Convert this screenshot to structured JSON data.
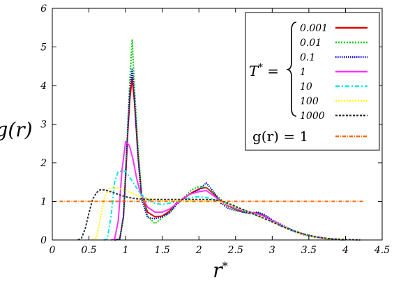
{
  "chart_data": {
    "type": "line",
    "xlabel": "r*",
    "ylabel": "g(r)",
    "xlim": [
      0,
      4.5
    ],
    "ylim": [
      0,
      6
    ],
    "xticks": [
      0,
      0.5,
      1,
      1.5,
      2,
      2.5,
      3,
      3.5,
      4,
      4.5
    ],
    "yticks": [
      0,
      1,
      2,
      3,
      4,
      5,
      6
    ],
    "grid": false,
    "legend_position": "top-right",
    "legend_group_label": "T* =",
    "series": [
      {
        "name": "0.001",
        "color": "#e00000",
        "dash": "solid",
        "points": [
          [
            0.85,
            0
          ],
          [
            0.92,
            0.02
          ],
          [
            0.97,
            0.6
          ],
          [
            1.0,
            1.6
          ],
          [
            1.03,
            2.8
          ],
          [
            1.06,
            3.7
          ],
          [
            1.09,
            4.2
          ],
          [
            1.12,
            3.6
          ],
          [
            1.17,
            2.2
          ],
          [
            1.22,
            1.15
          ],
          [
            1.3,
            0.72
          ],
          [
            1.4,
            0.6
          ],
          [
            1.5,
            0.62
          ],
          [
            1.6,
            0.75
          ],
          [
            1.7,
            0.97
          ],
          [
            1.8,
            1.08
          ],
          [
            1.9,
            1.22
          ],
          [
            2.0,
            1.32
          ],
          [
            2.1,
            1.36
          ],
          [
            2.2,
            1.2
          ],
          [
            2.3,
            1.0
          ],
          [
            2.4,
            0.88
          ],
          [
            2.5,
            0.8
          ],
          [
            2.6,
            0.74
          ],
          [
            2.7,
            0.7
          ],
          [
            2.8,
            0.7
          ],
          [
            2.9,
            0.62
          ],
          [
            3.0,
            0.5
          ],
          [
            3.1,
            0.4
          ],
          [
            3.2,
            0.3
          ],
          [
            3.3,
            0.22
          ],
          [
            3.4,
            0.15
          ],
          [
            3.5,
            0.1
          ],
          [
            3.6,
            0.07
          ],
          [
            3.7,
            0.04
          ],
          [
            3.8,
            0.02
          ],
          [
            3.9,
            0.01
          ],
          [
            4.0,
            0.0
          ]
        ]
      },
      {
        "name": "0.01",
        "color": "#00cc00",
        "dash": "2,2",
        "points": [
          [
            0.85,
            0
          ],
          [
            0.92,
            0.02
          ],
          [
            0.97,
            0.6
          ],
          [
            1.0,
            1.8
          ],
          [
            1.03,
            3.0
          ],
          [
            1.06,
            4.2
          ],
          [
            1.09,
            5.2
          ],
          [
            1.12,
            4.0
          ],
          [
            1.17,
            2.4
          ],
          [
            1.22,
            1.15
          ],
          [
            1.3,
            0.62
          ],
          [
            1.4,
            0.42
          ],
          [
            1.5,
            0.58
          ],
          [
            1.6,
            0.7
          ],
          [
            1.7,
            0.95
          ],
          [
            1.8,
            1.1
          ],
          [
            1.9,
            1.3
          ],
          [
            2.0,
            1.38
          ],
          [
            2.1,
            1.36
          ],
          [
            2.2,
            1.22
          ],
          [
            2.3,
            1.05
          ],
          [
            2.4,
            0.88
          ],
          [
            2.5,
            0.78
          ],
          [
            2.6,
            0.72
          ],
          [
            2.7,
            0.7
          ],
          [
            2.8,
            0.72
          ],
          [
            2.9,
            0.62
          ],
          [
            3.0,
            0.5
          ],
          [
            3.1,
            0.4
          ],
          [
            3.2,
            0.3
          ],
          [
            3.3,
            0.22
          ],
          [
            3.4,
            0.15
          ],
          [
            3.5,
            0.1
          ],
          [
            3.6,
            0.07
          ],
          [
            3.7,
            0.04
          ],
          [
            3.8,
            0.02
          ],
          [
            3.9,
            0.01
          ],
          [
            4.0,
            0.0
          ]
        ]
      },
      {
        "name": "0.1",
        "color": "#0000cc",
        "dash": "1.5,1.5",
        "points": [
          [
            0.85,
            0
          ],
          [
            0.92,
            0.02
          ],
          [
            0.97,
            0.6
          ],
          [
            1.0,
            1.7
          ],
          [
            1.03,
            2.9
          ],
          [
            1.06,
            3.9
          ],
          [
            1.09,
            4.45
          ],
          [
            1.12,
            3.7
          ],
          [
            1.17,
            2.1
          ],
          [
            1.22,
            1.05
          ],
          [
            1.3,
            0.58
          ],
          [
            1.4,
            0.55
          ],
          [
            1.5,
            0.6
          ],
          [
            1.6,
            0.7
          ],
          [
            1.7,
            0.92
          ],
          [
            1.8,
            1.1
          ],
          [
            1.9,
            1.2
          ],
          [
            2.0,
            1.3
          ],
          [
            2.1,
            1.48
          ],
          [
            2.2,
            1.25
          ],
          [
            2.3,
            0.95
          ],
          [
            2.4,
            0.82
          ],
          [
            2.5,
            0.76
          ],
          [
            2.6,
            0.72
          ],
          [
            2.7,
            0.68
          ],
          [
            2.8,
            0.72
          ],
          [
            2.9,
            0.65
          ],
          [
            3.0,
            0.52
          ],
          [
            3.1,
            0.42
          ],
          [
            3.2,
            0.32
          ],
          [
            3.3,
            0.24
          ],
          [
            3.4,
            0.17
          ],
          [
            3.5,
            0.12
          ],
          [
            3.6,
            0.08
          ],
          [
            3.7,
            0.05
          ],
          [
            3.8,
            0.03
          ],
          [
            3.9,
            0.01
          ],
          [
            4.0,
            0.0
          ]
        ]
      },
      {
        "name": "1",
        "color": "#ff33ff",
        "dash": "solid",
        "points": [
          [
            0.8,
            0
          ],
          [
            0.85,
            0.02
          ],
          [
            0.9,
            0.5
          ],
          [
            0.95,
            1.8
          ],
          [
            1.0,
            2.55
          ],
          [
            1.05,
            2.45
          ],
          [
            1.1,
            2.1
          ],
          [
            1.15,
            1.6
          ],
          [
            1.2,
            1.22
          ],
          [
            1.3,
            0.85
          ],
          [
            1.4,
            0.72
          ],
          [
            1.5,
            0.72
          ],
          [
            1.6,
            0.8
          ],
          [
            1.7,
            0.95
          ],
          [
            1.8,
            1.1
          ],
          [
            1.9,
            1.2
          ],
          [
            2.0,
            1.25
          ],
          [
            2.1,
            1.28
          ],
          [
            2.2,
            1.15
          ],
          [
            2.3,
            1.0
          ],
          [
            2.4,
            0.9
          ],
          [
            2.5,
            0.82
          ],
          [
            2.6,
            0.76
          ],
          [
            2.7,
            0.72
          ],
          [
            2.8,
            0.68
          ],
          [
            2.9,
            0.6
          ],
          [
            3.0,
            0.5
          ],
          [
            3.1,
            0.4
          ],
          [
            3.2,
            0.3
          ],
          [
            3.3,
            0.22
          ],
          [
            3.4,
            0.15
          ],
          [
            3.5,
            0.1
          ],
          [
            3.6,
            0.07
          ],
          [
            3.7,
            0.04
          ],
          [
            3.8,
            0.02
          ],
          [
            3.9,
            0.01
          ],
          [
            4.0,
            0.0
          ]
        ]
      },
      {
        "name": "10",
        "color": "#00e5ee",
        "dash": "6,3,2,3",
        "points": [
          [
            0.7,
            0
          ],
          [
            0.75,
            0.02
          ],
          [
            0.8,
            0.6
          ],
          [
            0.85,
            1.5
          ],
          [
            0.9,
            1.78
          ],
          [
            1.0,
            1.78
          ],
          [
            1.1,
            1.5
          ],
          [
            1.2,
            1.2
          ],
          [
            1.3,
            1.05
          ],
          [
            1.4,
            0.95
          ],
          [
            1.5,
            0.92
          ],
          [
            1.6,
            0.95
          ],
          [
            1.7,
            1.0
          ],
          [
            1.8,
            1.05
          ],
          [
            1.9,
            1.1
          ],
          [
            2.0,
            1.12
          ],
          [
            2.1,
            1.1
          ],
          [
            2.2,
            1.05
          ],
          [
            2.3,
            1.0
          ],
          [
            2.4,
            0.92
          ],
          [
            2.5,
            0.85
          ],
          [
            2.6,
            0.78
          ],
          [
            2.7,
            0.7
          ],
          [
            2.8,
            0.62
          ],
          [
            2.9,
            0.55
          ],
          [
            3.0,
            0.47
          ],
          [
            3.1,
            0.38
          ],
          [
            3.2,
            0.3
          ],
          [
            3.3,
            0.22
          ],
          [
            3.4,
            0.15
          ],
          [
            3.5,
            0.1
          ],
          [
            3.6,
            0.07
          ],
          [
            3.7,
            0.04
          ],
          [
            3.8,
            0.02
          ],
          [
            3.9,
            0.01
          ],
          [
            4.0,
            0.0
          ]
        ]
      },
      {
        "name": "100",
        "color": "#ffff00",
        "dash": "2,2",
        "points": [
          [
            0.55,
            0
          ],
          [
            0.6,
            0.05
          ],
          [
            0.65,
            0.5
          ],
          [
            0.7,
            1.0
          ],
          [
            0.75,
            1.28
          ],
          [
            0.8,
            1.35
          ],
          [
            0.9,
            1.35
          ],
          [
            1.0,
            1.28
          ],
          [
            1.1,
            1.2
          ],
          [
            1.2,
            1.12
          ],
          [
            1.3,
            1.07
          ],
          [
            1.4,
            1.04
          ],
          [
            1.5,
            1.02
          ],
          [
            1.6,
            1.02
          ],
          [
            1.7,
            1.02
          ],
          [
            1.8,
            1.02
          ],
          [
            1.9,
            1.02
          ],
          [
            2.0,
            1.02
          ],
          [
            2.1,
            1.02
          ],
          [
            2.2,
            1.0
          ],
          [
            2.3,
            0.98
          ],
          [
            2.4,
            0.92
          ],
          [
            2.5,
            0.85
          ],
          [
            2.6,
            0.77
          ],
          [
            2.7,
            0.7
          ],
          [
            2.8,
            0.62
          ],
          [
            2.9,
            0.55
          ],
          [
            3.0,
            0.47
          ],
          [
            3.1,
            0.38
          ],
          [
            3.2,
            0.3
          ],
          [
            3.3,
            0.22
          ],
          [
            3.4,
            0.15
          ],
          [
            3.5,
            0.1
          ],
          [
            3.6,
            0.07
          ],
          [
            3.7,
            0.04
          ],
          [
            3.8,
            0.02
          ],
          [
            3.9,
            0.01
          ],
          [
            4.0,
            0.0
          ]
        ]
      },
      {
        "name": "1000",
        "color": "#333333",
        "dash": "3,2",
        "points": [
          [
            0.35,
            0
          ],
          [
            0.4,
            0.05
          ],
          [
            0.45,
            0.3
          ],
          [
            0.5,
            0.7
          ],
          [
            0.55,
            1.05
          ],
          [
            0.6,
            1.22
          ],
          [
            0.65,
            1.3
          ],
          [
            0.7,
            1.3
          ],
          [
            0.8,
            1.25
          ],
          [
            0.9,
            1.18
          ],
          [
            1.0,
            1.12
          ],
          [
            1.1,
            1.08
          ],
          [
            1.2,
            1.06
          ],
          [
            1.3,
            1.05
          ],
          [
            1.5,
            1.05
          ],
          [
            1.7,
            1.05
          ],
          [
            1.9,
            1.05
          ],
          [
            2.1,
            1.05
          ],
          [
            2.2,
            1.04
          ],
          [
            2.3,
            1.02
          ],
          [
            2.4,
            0.95
          ],
          [
            2.5,
            0.87
          ],
          [
            2.6,
            0.79
          ],
          [
            2.7,
            0.71
          ],
          [
            2.8,
            0.63
          ],
          [
            2.9,
            0.55
          ],
          [
            3.0,
            0.47
          ],
          [
            3.1,
            0.38
          ],
          [
            3.2,
            0.3
          ],
          [
            3.3,
            0.23
          ],
          [
            3.4,
            0.17
          ],
          [
            3.5,
            0.12
          ],
          [
            3.6,
            0.08
          ],
          [
            3.7,
            0.05
          ],
          [
            3.8,
            0.03
          ],
          [
            3.9,
            0.02
          ],
          [
            4.0,
            0.01
          ],
          [
            4.2,
            0.0
          ]
        ]
      },
      {
        "name": "g(r) = 1",
        "color": "#ff6600",
        "dash": "5,2,1,2",
        "points": [
          [
            0.1,
            1
          ],
          [
            4.25,
            1
          ]
        ]
      }
    ]
  }
}
